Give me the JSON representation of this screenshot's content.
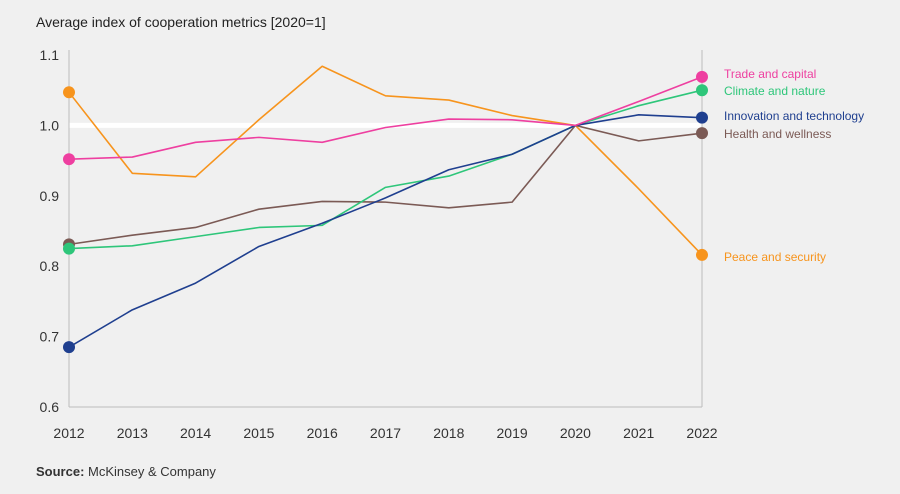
{
  "title": "Average index of cooperation metrics [2020=1]",
  "source_label": "Source:",
  "source_text": "McKinsey & Company",
  "chart_data": {
    "type": "line",
    "title": "Average index of cooperation metrics [2020=1]",
    "xlabel": "",
    "ylabel": "",
    "x": [
      2012,
      2013,
      2014,
      2015,
      2016,
      2017,
      2018,
      2019,
      2020,
      2021,
      2022
    ],
    "ylim": [
      0.6,
      1.1
    ],
    "yticks": [
      0.6,
      0.7,
      0.8,
      0.9,
      1.0,
      1.1
    ],
    "ytick_labels": [
      "0.6",
      "0.7",
      "0.8",
      "0.9",
      "1.0",
      "1.1"
    ],
    "reference_line": 1.0,
    "series": [
      {
        "name": "Peace and security",
        "color": "#f7941d",
        "values": [
          1.047,
          0.932,
          0.927,
          1.008,
          1.084,
          1.042,
          1.036,
          1.014,
          1.0,
          0.91,
          0.816
        ]
      },
      {
        "name": "Health and wellness",
        "color": "#7b5a55",
        "values": [
          0.831,
          0.844,
          0.855,
          0.881,
          0.892,
          0.891,
          0.883,
          0.891,
          1.0,
          0.978,
          0.989
        ]
      },
      {
        "name": "Climate and nature",
        "color": "#2ec67a",
        "values": [
          0.825,
          0.829,
          0.842,
          0.855,
          0.858,
          0.912,
          0.928,
          0.959,
          1.0,
          1.028,
          1.05
        ]
      },
      {
        "name": "Innovation and technology",
        "color": "#1f3f8f",
        "values": [
          0.685,
          0.738,
          0.776,
          0.828,
          0.861,
          0.897,
          0.937,
          0.959,
          1.0,
          1.015,
          1.011
        ]
      },
      {
        "name": "Trade and capital",
        "color": "#ee3fa0",
        "values": [
          0.952,
          0.955,
          0.976,
          0.983,
          0.976,
          0.997,
          1.009,
          1.008,
          1.0,
          1.034,
          1.069
        ]
      }
    ]
  }
}
